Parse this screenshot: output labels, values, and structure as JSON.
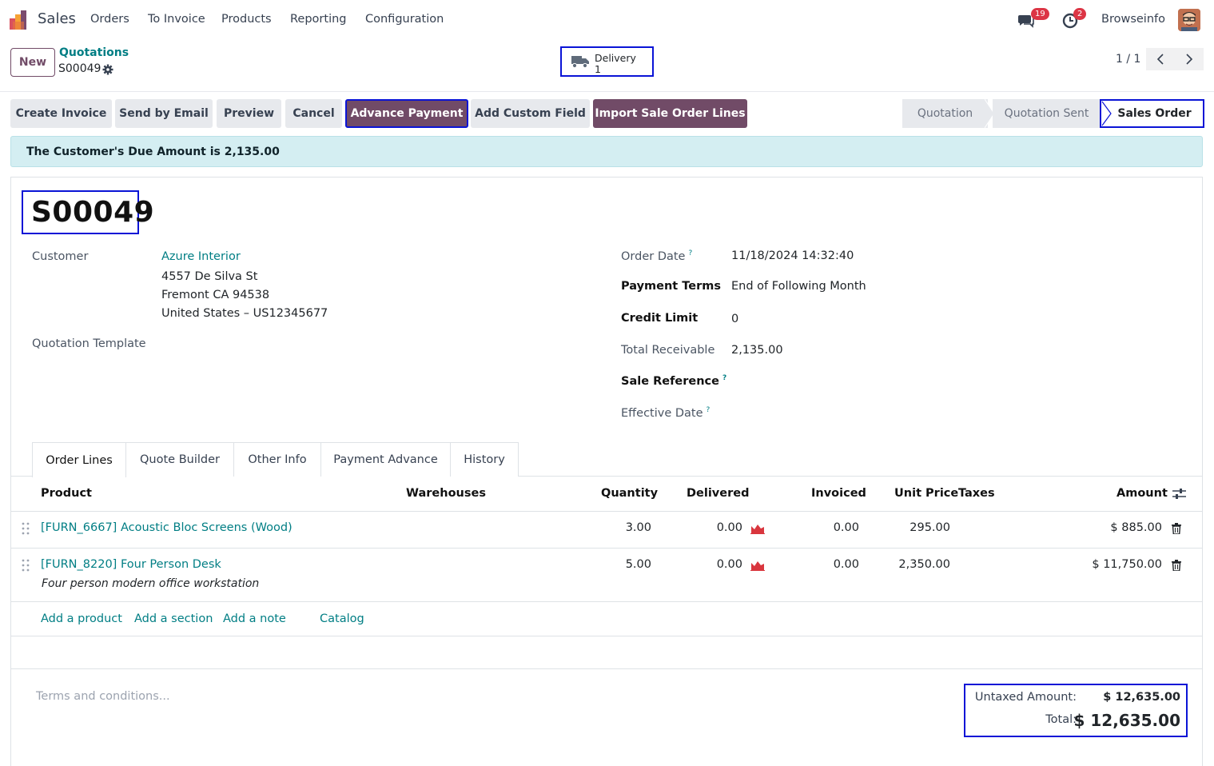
{
  "navbar": {
    "app_name": "Sales",
    "menu": [
      "Orders",
      "To Invoice",
      "Products",
      "Reporting",
      "Configuration"
    ],
    "messages_badge": "19",
    "activities_badge": "2",
    "user_name": "Browseinfo"
  },
  "control_panel": {
    "new_label": "New",
    "breadcrumb_parent": "Quotations",
    "breadcrumb_current": "S00049",
    "delivery_label": "Delivery",
    "delivery_count": "1",
    "pager": "1 / 1"
  },
  "actions": {
    "create_invoice": "Create Invoice",
    "send_email": "Send by Email",
    "preview": "Preview",
    "cancel": "Cancel",
    "advance_payment": "Advance Payment",
    "add_custom_field": "Add Custom Field",
    "import_lines": "Import Sale Order Lines"
  },
  "statusbar": {
    "quotation": "Quotation",
    "quotation_sent": "Quotation Sent",
    "sales_order": "Sales Order"
  },
  "alert": "The Customer's Due Amount is 2,135.00",
  "form": {
    "title": "S00049",
    "customer_label": "Customer",
    "customer_name": "Azure Interior",
    "address_line1": "4557 De Silva St",
    "address_line2": "Fremont CA 94538",
    "address_line3": "United States – US12345677",
    "template_label": "Quotation Template",
    "order_date_label": "Order Date",
    "order_date": "11/18/2024 14:32:40",
    "payment_terms_label": "Payment Terms",
    "payment_terms": "End of Following Month",
    "credit_limit_label": "Credit Limit",
    "credit_limit": "0",
    "total_receivable_label": "Total Receivable",
    "total_receivable": "2,135.00",
    "sale_reference_label": "Sale Reference",
    "effective_date_label": "Effective Date",
    "help_mark": "?"
  },
  "tabs": [
    "Order Lines",
    "Quote Builder",
    "Other Info",
    "Payment Advance",
    "History"
  ],
  "table": {
    "headers": {
      "product": "Product",
      "warehouses": "Warehouses",
      "quantity": "Quantity",
      "delivered": "Delivered",
      "invoiced": "Invoiced",
      "unit_price": "Unit Price",
      "taxes": "Taxes",
      "amount": "Amount"
    },
    "rows": [
      {
        "product": "[FURN_6667] Acoustic Bloc Screens (Wood)",
        "description": "",
        "quantity": "3.00",
        "delivered": "0.00",
        "invoiced": "0.00",
        "unit_price": "295.00",
        "amount": "$ 885.00"
      },
      {
        "product": "[FURN_8220] Four Person Desk",
        "description": "Four person modern office workstation",
        "quantity": "5.00",
        "delivered": "0.00",
        "invoiced": "0.00",
        "unit_price": "2,350.00",
        "amount": "$ 11,750.00"
      }
    ],
    "add_links": [
      "Add a product",
      "Add a section",
      "Add a note",
      "Catalog"
    ]
  },
  "footer": {
    "terms_placeholder": "Terms and conditions...",
    "untaxed_label": "Untaxed Amount:",
    "untaxed_value": "$ 12,635.00",
    "total_label": "Total:",
    "total_value": "$ 12,635.00"
  },
  "colors": {
    "brand": "#714b67",
    "link": "#017e84",
    "highlight_box": "#0a14d6",
    "alert_bg": "#d4eef2"
  }
}
